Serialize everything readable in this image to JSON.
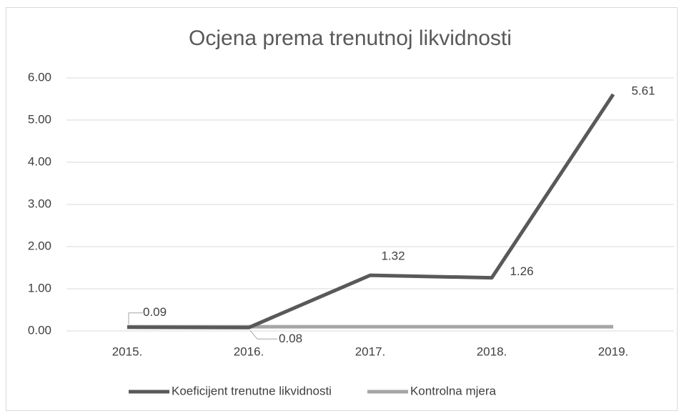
{
  "chart_data": {
    "type": "line",
    "title": "Ocjena prema trenutnoj likvidnosti",
    "categories": [
      "2015.",
      "2016.",
      "2017.",
      "2018.",
      "2019."
    ],
    "series": [
      {
        "name": "Koeficijent trenutne likvidnosti",
        "color": "#595959",
        "values": [
          0.09,
          0.08,
          1.32,
          1.26,
          5.61
        ]
      },
      {
        "name": "Kontrolna mjera",
        "color": "#a6a6a6",
        "values": [
          0.1,
          0.1,
          0.1,
          0.1,
          0.1
        ]
      }
    ],
    "ylim": [
      0,
      6
    ],
    "yticks": [
      {
        "value": 0,
        "label": "0.00"
      },
      {
        "value": 1,
        "label": "1.00"
      },
      {
        "value": 2,
        "label": "2.00"
      },
      {
        "value": 3,
        "label": "3.00"
      },
      {
        "value": 4,
        "label": "4.00"
      },
      {
        "value": 5,
        "label": "5.00"
      },
      {
        "value": 6,
        "label": "6.00"
      }
    ],
    "grid": true,
    "legend": "bottom"
  }
}
